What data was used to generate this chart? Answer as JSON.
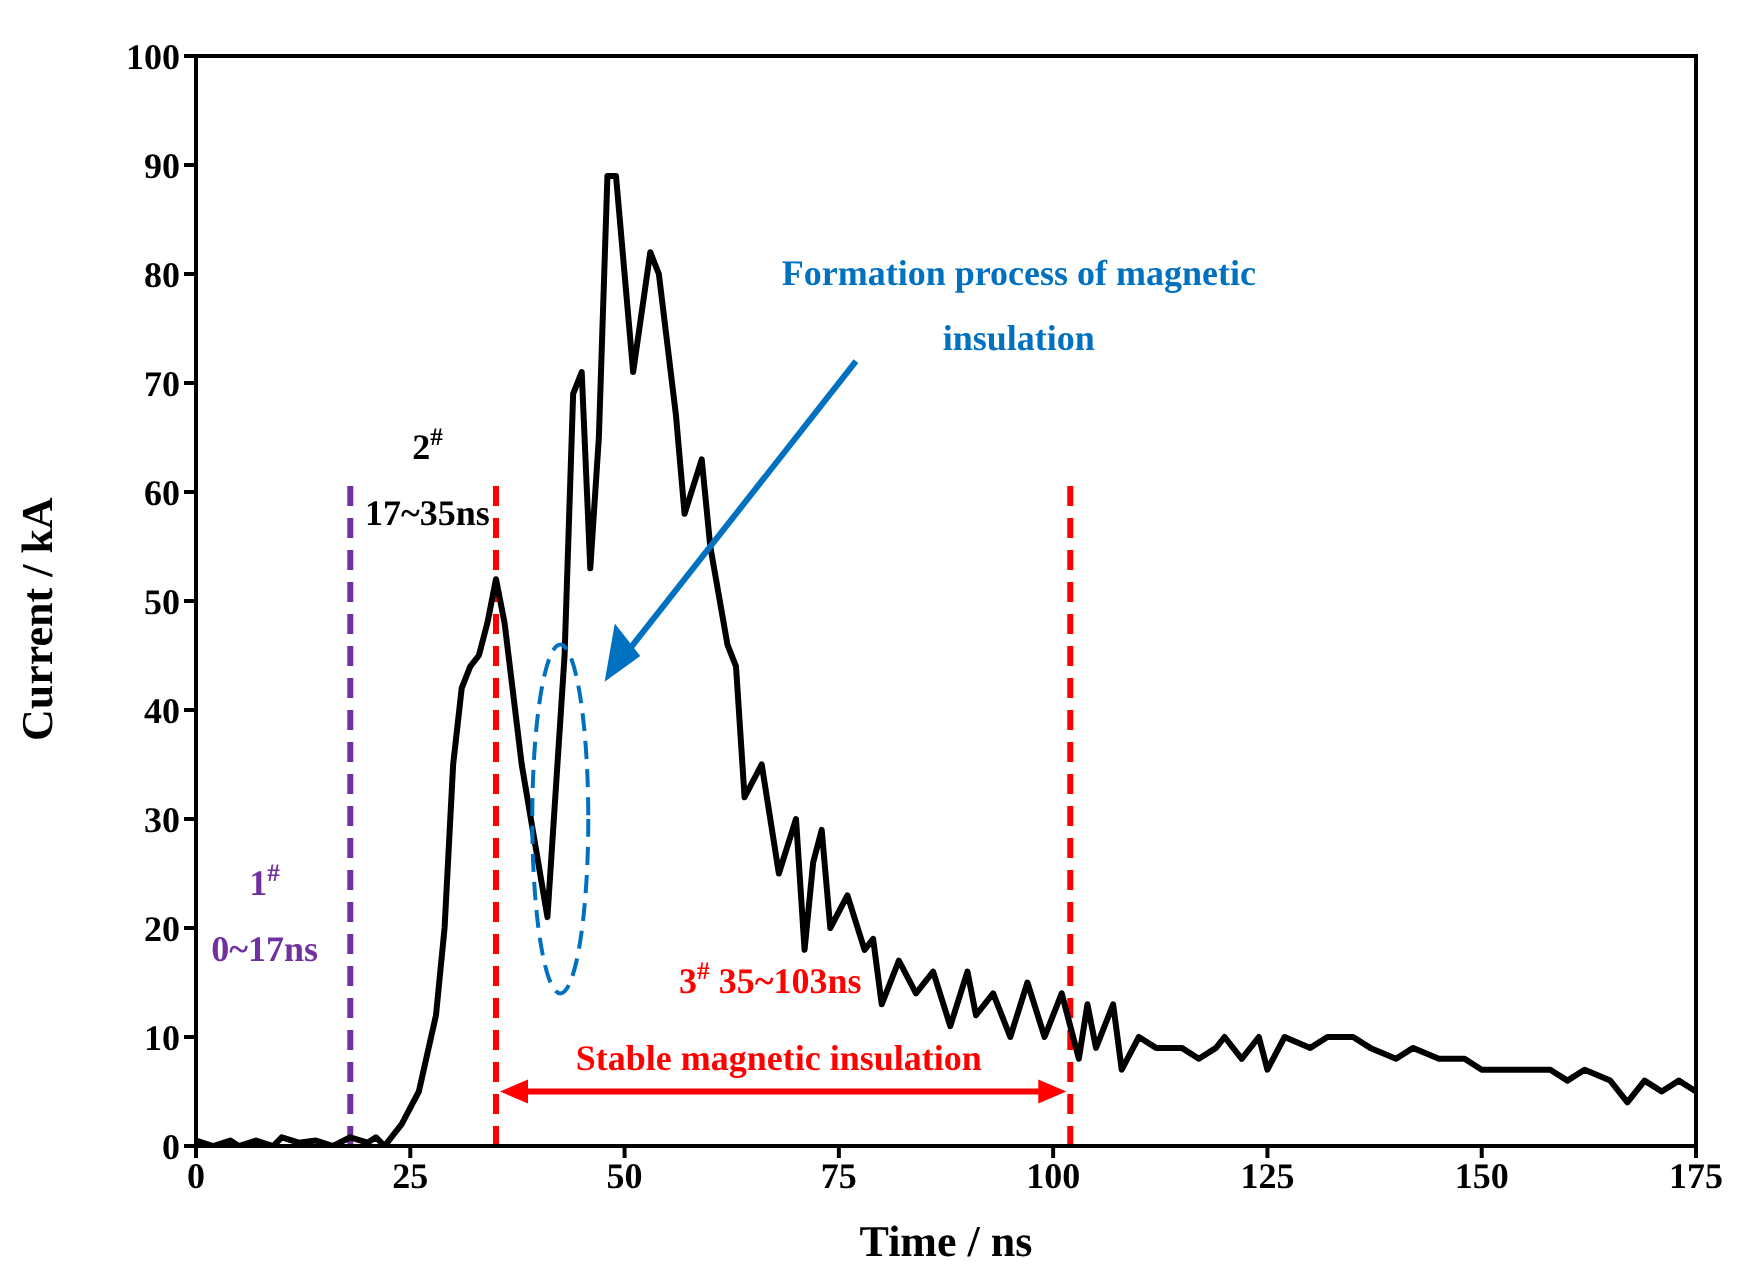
{
  "chart_data": {
    "type": "line",
    "xlabel": "Time / ns",
    "ylabel": "Current / kA",
    "xlim": [
      0,
      175
    ],
    "xticks": [
      0,
      25,
      50,
      75,
      100,
      125,
      150,
      175
    ],
    "ylim": [
      0,
      100
    ],
    "yticks": [
      0,
      10,
      20,
      30,
      40,
      50,
      60,
      70,
      80,
      90,
      100
    ],
    "marker": "none",
    "line_style": "solid",
    "series": [
      {
        "color": "#000000",
        "x": [
          0,
          2,
          4,
          5,
          7,
          9,
          10,
          12,
          14,
          16,
          18,
          20,
          21,
          22,
          24,
          26,
          28,
          29,
          30,
          31,
          32,
          33,
          34,
          35,
          36,
          38,
          41,
          43,
          44,
          45,
          46,
          47,
          48,
          49,
          50,
          51,
          53,
          54,
          56,
          57,
          59,
          60,
          62,
          63,
          64,
          66,
          68,
          70,
          71,
          72,
          73,
          74,
          76,
          78,
          79,
          80,
          82,
          84,
          86,
          88,
          90,
          91,
          93,
          95,
          97,
          99,
          101,
          103,
          104,
          105,
          107,
          108,
          110,
          112,
          115,
          117,
          119,
          120,
          122,
          124,
          125,
          127,
          130,
          132,
          135,
          137,
          140,
          142,
          145,
          148,
          150,
          152,
          155,
          158,
          160,
          162,
          165,
          167,
          169,
          171,
          173,
          175
        ],
        "values": [
          0.5,
          0,
          0.5,
          0,
          0.5,
          0,
          0.8,
          0.3,
          0.5,
          0,
          0.8,
          0.3,
          0.8,
          0,
          2,
          5,
          12,
          20,
          35,
          42,
          44,
          45,
          48,
          52,
          48,
          35,
          21,
          45,
          69,
          71,
          53,
          65,
          89,
          89,
          80,
          71,
          82,
          80,
          67,
          58,
          63,
          55,
          46,
          44,
          32,
          35,
          25,
          30,
          18,
          26,
          29,
          20,
          23,
          18,
          19,
          13,
          17,
          14,
          16,
          11,
          16,
          12,
          14,
          10,
          15,
          10,
          14,
          8,
          13,
          9,
          13,
          7,
          10,
          9,
          9,
          8,
          9,
          10,
          8,
          10,
          7,
          10,
          9,
          10,
          10,
          9,
          8,
          9,
          8,
          8,
          7,
          7,
          7,
          7,
          6,
          7,
          6,
          4,
          6,
          5,
          6,
          5
        ]
      }
    ],
    "ref_lines": [
      {
        "axis": "x",
        "value": 18,
        "color": "#7030a0",
        "line_style": "dashed"
      },
      {
        "axis": "x",
        "value": 35,
        "color": "#ff0000",
        "line_style": "dashed"
      },
      {
        "axis": "x",
        "value": 102,
        "color": "#ff0000",
        "line_style": "dashed"
      }
    ],
    "annotations": [
      "1$^{#}$",
      "0~17ns",
      "2$^{#}$",
      "17~35ns",
      "3$^{#}$ 35~103ns",
      "Stable magnetic insulation",
      "Formation process of magnetic",
      "insulation"
    ]
  }
}
